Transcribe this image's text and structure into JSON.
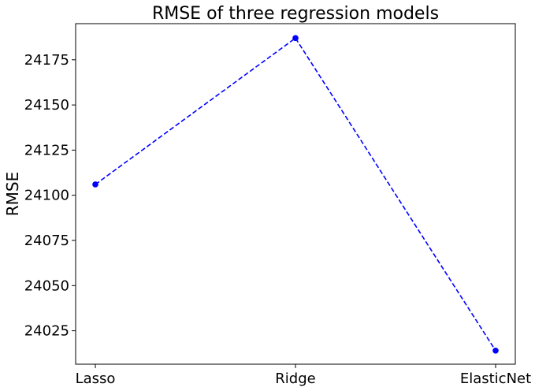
{
  "chart_data": {
    "type": "line",
    "title": "RMSE of three regression models",
    "xlabel": "",
    "ylabel": "RMSE",
    "categories": [
      "Lasso",
      "Ridge",
      "ElasticNet"
    ],
    "series": [
      {
        "values": [
          24106,
          24187,
          24014
        ],
        "color": "#0000ff",
        "line_style": "dashed",
        "marker": "circle"
      }
    ],
    "y_ticks": [
      24025,
      24050,
      24075,
      24100,
      24125,
      24150,
      24175
    ],
    "ylim": [
      24006.5,
      24195
    ],
    "grid": false,
    "legend": "none"
  }
}
